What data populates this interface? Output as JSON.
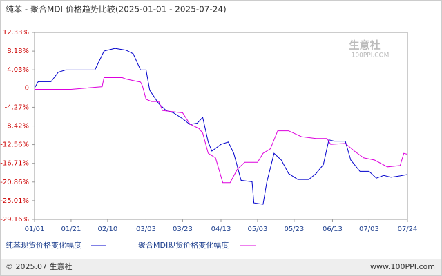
{
  "chart_data": {
    "type": "line",
    "title": "纯苯 - 聚合MDI 价格趋势比较(2025-01-01 - 2025-07-24)",
    "watermark": [
      "生意社",
      "100PPI.COM"
    ],
    "footer_left": "© 2025.07 生意社",
    "footer_right": "www.100PPI.com",
    "xlim": [
      "01/01",
      "07/24"
    ],
    "xticks": [
      "01/01",
      "01/21",
      "02/10",
      "03/03",
      "03/23",
      "04/13",
      "05/03",
      "05/23",
      "06/13",
      "07/03",
      "07/24"
    ],
    "ylim": [
      -29.16,
      12.33
    ],
    "yticks": [
      {
        "value": 12.33,
        "label": "12.33%"
      },
      {
        "value": 8.18,
        "label": "8.18%"
      },
      {
        "value": 4.03,
        "label": "4.03%"
      },
      0,
      {
        "value": -4.27,
        "label": "-4.27%"
      },
      {
        "value": -8.42,
        "label": "-8.42%"
      },
      {
        "value": -12.56,
        "label": "-12.56%"
      },
      {
        "value": -16.71,
        "label": "-16.71%"
      },
      {
        "value": -20.86,
        "label": "-20.86%"
      },
      {
        "value": -25.01,
        "label": "-25.01%"
      },
      {
        "value": -29.16,
        "label": "-29.16%"
      }
    ],
    "series": [
      {
        "name": "纯苯现货价格变化幅度",
        "color": "#0000cc",
        "x": [
          "01/01",
          "01/03",
          "01/10",
          "01/14",
          "01/18",
          "01/21",
          "02/03",
          "02/06",
          "02/08",
          "02/14",
          "02/20",
          "02/24",
          "02/28",
          "03/03",
          "03/05",
          "03/10",
          "03/14",
          "03/18",
          "03/23",
          "03/27",
          "03/31",
          "04/03",
          "04/06",
          "04/08",
          "04/13",
          "04/17",
          "04/20",
          "04/24",
          "04/30",
          "05/01",
          "05/06",
          "05/08",
          "05/12",
          "05/16",
          "05/20",
          "05/25",
          "05/31",
          "06/04",
          "06/08",
          "06/11",
          "06/14",
          "06/20",
          "06/23",
          "06/28",
          "07/03",
          "07/07",
          "07/11",
          "07/15",
          "07/20",
          "07/24"
        ],
        "values": [
          0,
          1.4,
          1.4,
          3.5,
          4.0,
          4.0,
          4.0,
          6.5,
          8.2,
          8.8,
          8.4,
          7.6,
          4.0,
          4.0,
          -0.5,
          -3.5,
          -5.0,
          -5.5,
          -6.8,
          -8.1,
          -7.8,
          -6.5,
          -12.0,
          -14.0,
          -12.5,
          -12.0,
          -14.5,
          -20.5,
          -20.8,
          -25.5,
          -25.8,
          -21.0,
          -14.5,
          -16.0,
          -19.0,
          -20.3,
          -20.3,
          -19.0,
          -17.0,
          -11.5,
          -11.8,
          -11.8,
          -16.0,
          -18.5,
          -18.5,
          -20.0,
          -19.4,
          -19.8,
          -19.5,
          -19.2
        ]
      },
      {
        "name": "聚合MDI现货价格变化幅度",
        "color": "#dd00dd",
        "x": [
          "01/01",
          "01/21",
          "02/07",
          "02/08",
          "02/18",
          "02/20",
          "02/28",
          "03/01",
          "03/03",
          "03/06",
          "03/10",
          "03/12",
          "03/23",
          "03/27",
          "04/01",
          "04/03",
          "04/06",
          "04/10",
          "04/14",
          "04/18",
          "04/22",
          "04/26",
          "05/03",
          "05/06",
          "05/10",
          "05/14",
          "05/20",
          "05/27",
          "06/04",
          "06/10",
          "06/12",
          "06/20",
          "06/25",
          "06/30",
          "07/06",
          "07/13",
          "07/20",
          "07/22",
          "07/24"
        ],
        "values": [
          -0.3,
          -0.3,
          0.3,
          2.3,
          2.3,
          2.0,
          1.3,
          0.5,
          -2.5,
          -3.0,
          -3.0,
          -5.0,
          -5.5,
          -8.0,
          -9.0,
          -10.0,
          -14.5,
          -15.5,
          -21.0,
          -21.0,
          -18.0,
          -16.5,
          -16.5,
          -14.5,
          -13.5,
          -9.5,
          -9.5,
          -10.8,
          -11.2,
          -11.2,
          -12.5,
          -12.3,
          -14.0,
          -15.5,
          -16.0,
          -17.5,
          -17.2,
          -14.5,
          -14.7
        ]
      }
    ]
  }
}
